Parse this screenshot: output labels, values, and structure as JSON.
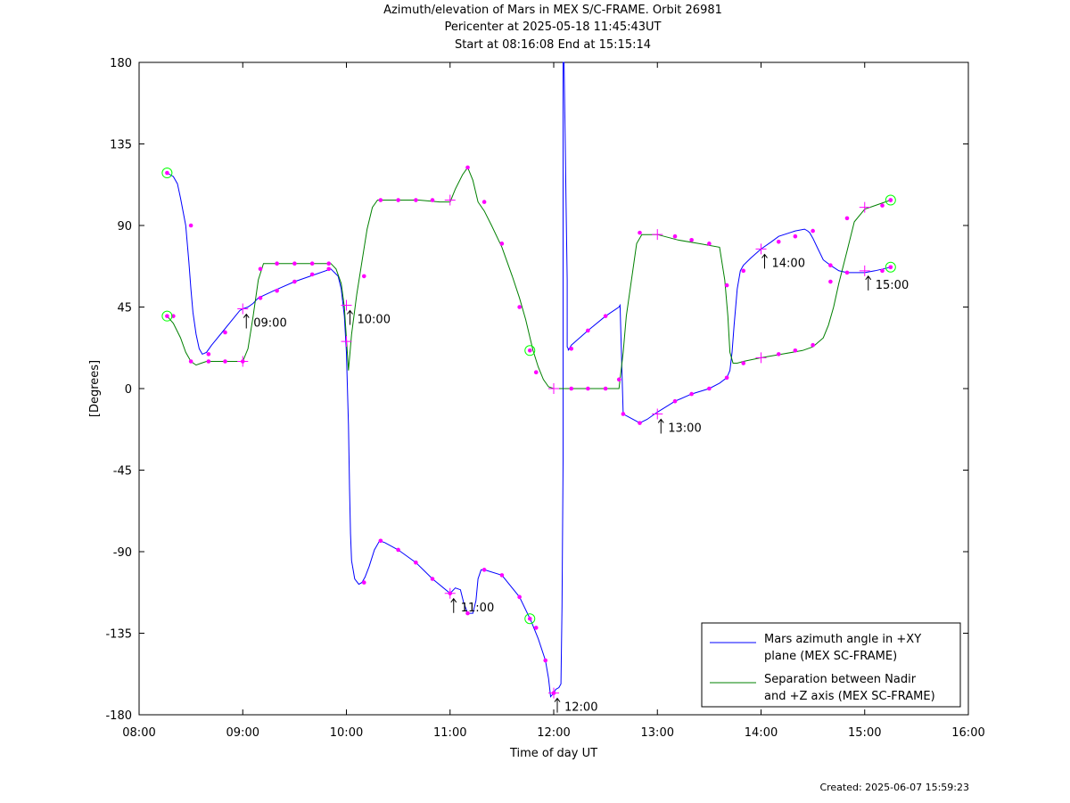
{
  "title_lines": [
    "Azimuth/elevation of Mars in MEX S/C-FRAME.  Orbit 26981",
    "Pericenter at 2025-05-18 11:45:43UT",
    "Start at 08:16:08 End at 15:15:14"
  ],
  "footer": "Created: 2025-06-07 15:59:23",
  "colors": {
    "azimuth": "#0000ff",
    "separation": "#008000",
    "marker": "#ff00ff",
    "endpoint": "#00ff00"
  },
  "chart_data": {
    "type": "line",
    "title": "Azimuth/elevation of Mars in MEX S/C-FRAME.  Orbit 26981",
    "xlabel": "Time of day UT",
    "ylabel": "[Degrees]",
    "xlim": [
      8.0,
      16.0
    ],
    "ylim": [
      -180,
      180
    ],
    "x_ticks": [
      8,
      9,
      10,
      11,
      12,
      13,
      14,
      15,
      16
    ],
    "x_tick_labels": [
      "08:00",
      "09:00",
      "10:00",
      "11:00",
      "12:00",
      "13:00",
      "14:00",
      "15:00",
      "16:00"
    ],
    "y_ticks": [
      -180,
      -135,
      -90,
      -45,
      0,
      45,
      90,
      135,
      180
    ],
    "y_tick_labels": [
      "-180",
      "-135",
      "-90",
      "-45",
      "0",
      "45",
      "90",
      "135",
      "180"
    ],
    "grid": false,
    "legend_position": "bottom-right",
    "series": [
      {
        "name": "Mars azimuth angle in +XY plane (MEX SC-FRAME)",
        "legend_lines": [
          "Mars azimuth angle in +XY",
          "plane (MEX SC-FRAME)"
        ],
        "color": "#0000ff",
        "x": [
          8.27,
          8.33,
          8.37,
          8.4,
          8.45,
          8.48,
          8.5,
          8.52,
          8.55,
          8.58,
          8.61,
          8.65,
          8.7,
          8.8,
          8.9,
          8.97,
          9.0,
          9.05,
          9.1,
          9.15,
          9.3,
          9.5,
          9.7,
          9.85,
          9.92,
          9.95,
          9.98,
          10.0,
          10.02,
          10.03,
          10.04,
          10.05,
          10.08,
          10.12,
          10.15,
          10.18,
          10.22,
          10.27,
          10.32,
          10.37,
          10.5,
          10.67,
          10.83,
          11.0,
          11.05,
          11.1,
          11.13,
          11.17,
          11.22,
          11.25,
          11.27,
          11.3,
          11.33,
          11.5,
          11.67,
          11.78,
          11.85,
          11.92,
          11.95,
          11.97,
          12.0,
          12.02,
          12.05,
          12.07,
          12.08,
          12.09,
          12.09,
          12.1,
          12.11,
          12.12,
          12.13,
          12.13,
          12.14,
          12.14,
          12.15,
          12.17,
          12.33,
          12.5,
          12.63,
          12.64,
          12.67,
          12.7,
          12.83,
          12.9,
          13.0,
          13.17,
          13.33,
          13.5,
          13.6,
          13.67,
          13.7,
          13.72,
          13.74,
          13.77,
          13.8,
          13.83,
          13.9,
          14.0,
          14.1,
          14.17,
          14.33,
          14.42,
          14.45,
          14.47,
          14.5,
          14.55,
          14.6,
          14.67,
          14.75,
          14.83,
          15.0,
          15.1,
          15.25
        ],
        "y": [
          119,
          117,
          113,
          105,
          90,
          70,
          55,
          42,
          30,
          22,
          19,
          20,
          24,
          31,
          38,
          43,
          44,
          45,
          47,
          50,
          54,
          59,
          63,
          66,
          62,
          55,
          40,
          20,
          -20,
          -55,
          -80,
          -95,
          -105,
          -108,
          -107,
          -104,
          -98,
          -89,
          -84,
          -85,
          -89,
          -96,
          -105,
          -113,
          -110,
          -111,
          -118,
          -124,
          -124,
          -117,
          -105,
          -100,
          -100,
          -103,
          -115,
          -128,
          -138,
          -150,
          -160,
          -170,
          -168,
          -166,
          -165,
          -163,
          -120,
          -40,
          180,
          180,
          140,
          100,
          60,
          23,
          22,
          21,
          22,
          24,
          32,
          40,
          45,
          46,
          -14,
          -15,
          -19,
          -17,
          -13,
          -7,
          -3,
          0,
          3,
          6,
          10,
          20,
          35,
          55,
          65,
          68,
          72,
          77,
          81,
          84,
          87,
          88,
          87,
          86,
          83,
          77,
          71,
          68,
          65,
          64,
          64,
          65,
          67
        ],
        "markers": [
          [
            8.5,
            90
          ],
          [
            8.67,
            19
          ],
          [
            8.83,
            31
          ],
          [
            9.17,
            50
          ],
          [
            9.33,
            54
          ],
          [
            9.5,
            59
          ],
          [
            9.67,
            63
          ],
          [
            9.83,
            66
          ],
          [
            10.17,
            -107
          ],
          [
            10.33,
            -84
          ],
          [
            10.5,
            -89
          ],
          [
            10.67,
            -96
          ],
          [
            10.83,
            -105
          ],
          [
            11.0,
            -113
          ],
          [
            11.17,
            -124
          ],
          [
            11.33,
            -100
          ],
          [
            11.5,
            -103
          ],
          [
            11.67,
            -115
          ],
          [
            11.83,
            -132
          ],
          [
            11.92,
            -150
          ],
          [
            12.0,
            -168
          ],
          [
            12.17,
            22
          ],
          [
            12.33,
            32
          ],
          [
            12.5,
            40
          ],
          [
            12.83,
            -19
          ],
          [
            12.67,
            -14
          ],
          [
            13.17,
            -7
          ],
          [
            13.33,
            -3
          ],
          [
            13.5,
            0
          ],
          [
            13.67,
            6
          ],
          [
            13.83,
            65
          ],
          [
            14.17,
            81
          ],
          [
            14.33,
            84
          ],
          [
            14.5,
            87
          ],
          [
            14.67,
            68
          ],
          [
            14.83,
            64
          ],
          [
            15.17,
            65
          ],
          [
            15.25,
            67
          ]
        ],
        "plus_markers": [
          [
            9.0,
            44
          ],
          [
            10.0,
            46
          ],
          [
            11.0,
            -113
          ],
          [
            12.0,
            -168
          ],
          [
            13.0,
            -14
          ],
          [
            14.0,
            77
          ],
          [
            15.0,
            65
          ]
        ],
        "endpoint_markers": [
          [
            8.27,
            119
          ]
        ]
      },
      {
        "name": "Separation between Nadir and +Z axis (MEX SC-FRAME)",
        "legend_lines": [
          "Separation between Nadir",
          "and +Z axis (MEX SC-FRAME)"
        ],
        "color": "#008000",
        "x": [
          8.27,
          8.33,
          8.4,
          8.45,
          8.5,
          8.55,
          8.6,
          8.65,
          8.7,
          8.8,
          8.9,
          9.0,
          9.05,
          9.1,
          9.15,
          9.2,
          9.3,
          9.5,
          9.7,
          9.85,
          9.9,
          9.95,
          9.98,
          10.02,
          10.05,
          10.1,
          10.15,
          10.2,
          10.25,
          10.3,
          10.35,
          10.5,
          10.7,
          10.9,
          11.0,
          11.05,
          11.12,
          11.17,
          11.22,
          11.27,
          11.33,
          11.4,
          11.5,
          11.6,
          11.67,
          11.73,
          11.8,
          11.85,
          11.9,
          11.95,
          12.0,
          12.2,
          12.4,
          12.63,
          12.67,
          12.7,
          12.8,
          12.85,
          13.0,
          13.2,
          13.4,
          13.6,
          13.65,
          13.68,
          13.7,
          13.73,
          13.77,
          13.83,
          14.0,
          14.2,
          14.4,
          14.5,
          14.6,
          14.65,
          14.7,
          14.75,
          14.83,
          14.9,
          15.0,
          15.1,
          15.25
        ],
        "y": [
          40,
          36,
          28,
          20,
          15,
          13,
          14,
          15,
          15,
          15,
          15,
          15,
          22,
          40,
          60,
          69,
          69,
          69,
          69,
          69,
          66,
          58,
          45,
          10,
          30,
          52,
          70,
          88,
          100,
          104,
          104,
          104,
          104,
          103,
          103,
          110,
          118,
          122,
          115,
          103,
          98,
          90,
          78,
          62,
          50,
          38,
          21,
          12,
          5,
          1,
          0,
          0,
          0,
          0,
          20,
          40,
          80,
          85,
          85,
          82,
          80,
          78,
          60,
          40,
          20,
          14,
          14,
          15,
          17,
          19,
          21,
          23,
          28,
          35,
          45,
          58,
          76,
          92,
          99,
          101,
          104
        ],
        "markers": [
          [
            8.33,
            40
          ],
          [
            8.5,
            15
          ],
          [
            8.67,
            15
          ],
          [
            8.83,
            15
          ],
          [
            9.0,
            15
          ],
          [
            9.17,
            66
          ],
          [
            9.33,
            69
          ],
          [
            9.5,
            69
          ],
          [
            9.67,
            69
          ],
          [
            9.83,
            69
          ],
          [
            10.17,
            62
          ],
          [
            10.33,
            104
          ],
          [
            10.5,
            104
          ],
          [
            10.67,
            104
          ],
          [
            10.83,
            104
          ],
          [
            11.17,
            122
          ],
          [
            11.33,
            103
          ],
          [
            11.5,
            80
          ],
          [
            11.67,
            45
          ],
          [
            11.83,
            9
          ],
          [
            12.17,
            0
          ],
          [
            12.33,
            0
          ],
          [
            12.5,
            0
          ],
          [
            12.63,
            5
          ],
          [
            12.83,
            86
          ],
          [
            13.17,
            84
          ],
          [
            13.33,
            82
          ],
          [
            13.5,
            80
          ],
          [
            13.67,
            57
          ],
          [
            13.83,
            14
          ],
          [
            14.17,
            19
          ],
          [
            14.33,
            21
          ],
          [
            14.5,
            24
          ],
          [
            14.67,
            59
          ],
          [
            14.83,
            94
          ],
          [
            15.17,
            101
          ],
          [
            15.25,
            104
          ]
        ],
        "plus_markers": [
          [
            9.0,
            15
          ],
          [
            10.0,
            26
          ],
          [
            11.0,
            104
          ],
          [
            12.0,
            0
          ],
          [
            13.0,
            85
          ],
          [
            14.0,
            17
          ],
          [
            15.0,
            100
          ]
        ],
        "endpoint_markers": [
          [
            8.27,
            40
          ],
          [
            11.77,
            21
          ],
          [
            11.77,
            -127
          ],
          [
            15.25,
            104
          ],
          [
            15.25,
            67
          ]
        ]
      }
    ],
    "annotations": [
      {
        "text": "09:00",
        "x": 9.0,
        "y": 44
      },
      {
        "text": "10:00",
        "x": 10.0,
        "y": 46
      },
      {
        "text": "11:00",
        "x": 11.0,
        "y": -113
      },
      {
        "text": "12:00",
        "x": 12.0,
        "y": -168
      },
      {
        "text": "13:00",
        "x": 13.0,
        "y": -14
      },
      {
        "text": "14:00",
        "x": 14.0,
        "y": 77
      },
      {
        "text": "15:00",
        "x": 15.0,
        "y": 65
      }
    ]
  }
}
